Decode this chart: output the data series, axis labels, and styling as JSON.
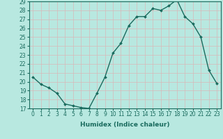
{
  "x": [
    0,
    1,
    2,
    3,
    4,
    5,
    6,
    7,
    8,
    9,
    10,
    11,
    12,
    13,
    14,
    15,
    16,
    17,
    18,
    19,
    20,
    21,
    22,
    23
  ],
  "y": [
    20.5,
    19.7,
    19.3,
    18.7,
    17.5,
    17.3,
    17.1,
    17.0,
    18.7,
    20.5,
    23.2,
    24.3,
    26.3,
    27.3,
    27.3,
    28.2,
    28.0,
    28.5,
    29.2,
    27.3,
    26.5,
    25.0,
    21.3,
    19.8
  ],
  "line_color": "#1a6b5e",
  "marker": "D",
  "marker_size": 2.0,
  "bg_color": "#b8e8e0",
  "grid_color": "#d8b8b8",
  "xlabel": "Humidex (Indice chaleur)",
  "ylim": [
    17,
    29
  ],
  "xlim": [
    -0.5,
    23.5
  ],
  "yticks": [
    17,
    18,
    19,
    20,
    21,
    22,
    23,
    24,
    25,
    26,
    27,
    28,
    29
  ],
  "xticks": [
    0,
    1,
    2,
    3,
    4,
    5,
    6,
    7,
    8,
    9,
    10,
    11,
    12,
    13,
    14,
    15,
    16,
    17,
    18,
    19,
    20,
    21,
    22,
    23
  ],
  "xlabel_fontsize": 6.5,
  "tick_fontsize": 5.5,
  "line_width": 1.0
}
